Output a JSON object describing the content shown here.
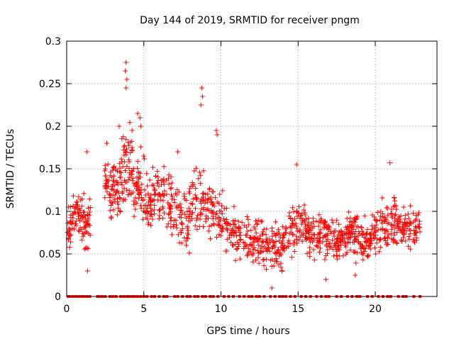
{
  "chart_data": {
    "type": "scatter",
    "title": "Day 144 of 2019, SRMTID for receiver pngm",
    "xlabel": "GPS time / hours",
    "ylabel": "SRMTID / TECUs",
    "xlim": [
      0,
      24
    ],
    "ylim": [
      0,
      0.3
    ],
    "x_ticks": [
      0,
      5,
      10,
      15,
      20
    ],
    "x_tick_labels": [
      "0",
      "5",
      "10",
      "15",
      "20"
    ],
    "y_ticks": [
      0,
      0.05,
      0.1,
      0.15,
      0.2,
      0.25,
      0.3
    ],
    "y_tick_labels": [
      "0",
      "0.05",
      "0.1",
      "0.15",
      "0.2",
      "0.25",
      "0.3"
    ],
    "grid": true,
    "marker": "+",
    "series": [
      {
        "name": "SRMTID",
        "color": "#ff0000",
        "marker": "plus",
        "envelope_note": "approximate median and spread of the dense point cloud, read per half-hour",
        "x": [
          0.1,
          0.5,
          0.9,
          1.3,
          1.9,
          2.4,
          2.8,
          3.2,
          3.6,
          4.0,
          4.4,
          4.8,
          5.3,
          5.8,
          6.3,
          6.8,
          7.3,
          7.8,
          8.3,
          8.8,
          9.3,
          9.8,
          10.3,
          10.8,
          11.3,
          11.8,
          12.3,
          12.8,
          13.3,
          13.8,
          14.3,
          14.8,
          15.3,
          15.8,
          16.3,
          16.8,
          17.3,
          17.8,
          18.3,
          18.8,
          19.3,
          19.8,
          20.3,
          20.8,
          21.3,
          21.8,
          22.3,
          22.8
        ],
        "median": [
          0.075,
          0.1,
          0.095,
          0.075,
          0.13,
          0.15,
          0.12,
          0.125,
          0.14,
          0.15,
          0.13,
          0.125,
          0.11,
          0.12,
          0.12,
          0.11,
          0.09,
          0.09,
          0.115,
          0.12,
          0.1,
          0.095,
          0.085,
          0.075,
          0.07,
          0.065,
          0.065,
          0.06,
          0.055,
          0.06,
          0.07,
          0.085,
          0.08,
          0.07,
          0.075,
          0.075,
          0.065,
          0.07,
          0.075,
          0.07,
          0.065,
          0.07,
          0.085,
          0.085,
          0.085,
          0.08,
          0.08,
          0.085
        ],
        "spread": [
          0.03,
          0.03,
          0.035,
          0.03,
          0.04,
          0.03,
          0.04,
          0.04,
          0.05,
          0.06,
          0.05,
          0.05,
          0.04,
          0.04,
          0.035,
          0.035,
          0.04,
          0.04,
          0.045,
          0.05,
          0.04,
          0.035,
          0.035,
          0.03,
          0.03,
          0.03,
          0.03,
          0.03,
          0.03,
          0.03,
          0.035,
          0.035,
          0.035,
          0.03,
          0.03,
          0.03,
          0.03,
          0.03,
          0.03,
          0.03,
          0.03,
          0.03,
          0.035,
          0.035,
          0.035,
          0.03,
          0.03,
          0.025
        ],
        "highlights": [
          {
            "x": 3.85,
            "y": 0.275
          },
          {
            "x": 3.8,
            "y": 0.265
          },
          {
            "x": 3.9,
            "y": 0.255
          },
          {
            "x": 3.85,
            "y": 0.245
          },
          {
            "x": 8.75,
            "y": 0.245
          },
          {
            "x": 8.8,
            "y": 0.235
          },
          {
            "x": 8.7,
            "y": 0.225
          },
          {
            "x": 4.6,
            "y": 0.215
          },
          {
            "x": 4.75,
            "y": 0.21
          },
          {
            "x": 4.8,
            "y": 0.2
          },
          {
            "x": 9.7,
            "y": 0.195
          },
          {
            "x": 9.75,
            "y": 0.19
          },
          {
            "x": 3.4,
            "y": 0.2
          },
          {
            "x": 2.6,
            "y": 0.18
          },
          {
            "x": 1.3,
            "y": 0.17
          },
          {
            "x": 7.2,
            "y": 0.17
          },
          {
            "x": 14.9,
            "y": 0.155
          },
          {
            "x": 20.95,
            "y": 0.157
          },
          {
            "x": 13.3,
            "y": 0.01
          },
          {
            "x": 1.35,
            "y": 0.03
          },
          {
            "x": 16.8,
            "y": 0.02
          },
          {
            "x": 18.7,
            "y": 0.025
          }
        ]
      },
      {
        "name": "zero baseline",
        "color": "#ff0000",
        "marker": "square",
        "y": 0,
        "x": [
          0.1,
          0.2,
          0.4,
          0.6,
          0.8,
          1.0,
          1.1,
          1.3,
          1.5,
          2.0,
          2.1,
          2.3,
          2.5,
          2.8,
          3.0,
          3.2,
          3.5,
          3.7,
          3.9,
          4.0,
          4.2,
          4.4,
          4.6,
          4.8,
          5.0,
          5.2,
          5.5,
          5.7,
          6.0,
          6.3,
          6.5,
          7.0,
          7.2,
          7.5,
          7.8,
          8.0,
          8.3,
          8.5,
          8.8,
          9.0,
          9.3,
          9.5,
          9.8,
          10.2,
          10.5,
          10.8,
          11.2,
          11.5,
          11.8,
          12.0,
          12.3,
          12.5,
          12.8,
          13.2,
          13.5,
          13.8,
          14.0,
          14.2,
          14.5,
          14.8,
          15.2,
          15.5,
          15.8,
          16.2,
          16.5,
          16.8,
          17.0,
          17.5,
          17.8,
          18.2,
          18.5,
          18.8,
          19.0,
          19.5,
          19.8,
          20.2,
          20.5,
          20.8,
          21.0,
          21.5,
          21.8,
          22.0,
          22.5,
          22.9
        ]
      }
    ]
  }
}
